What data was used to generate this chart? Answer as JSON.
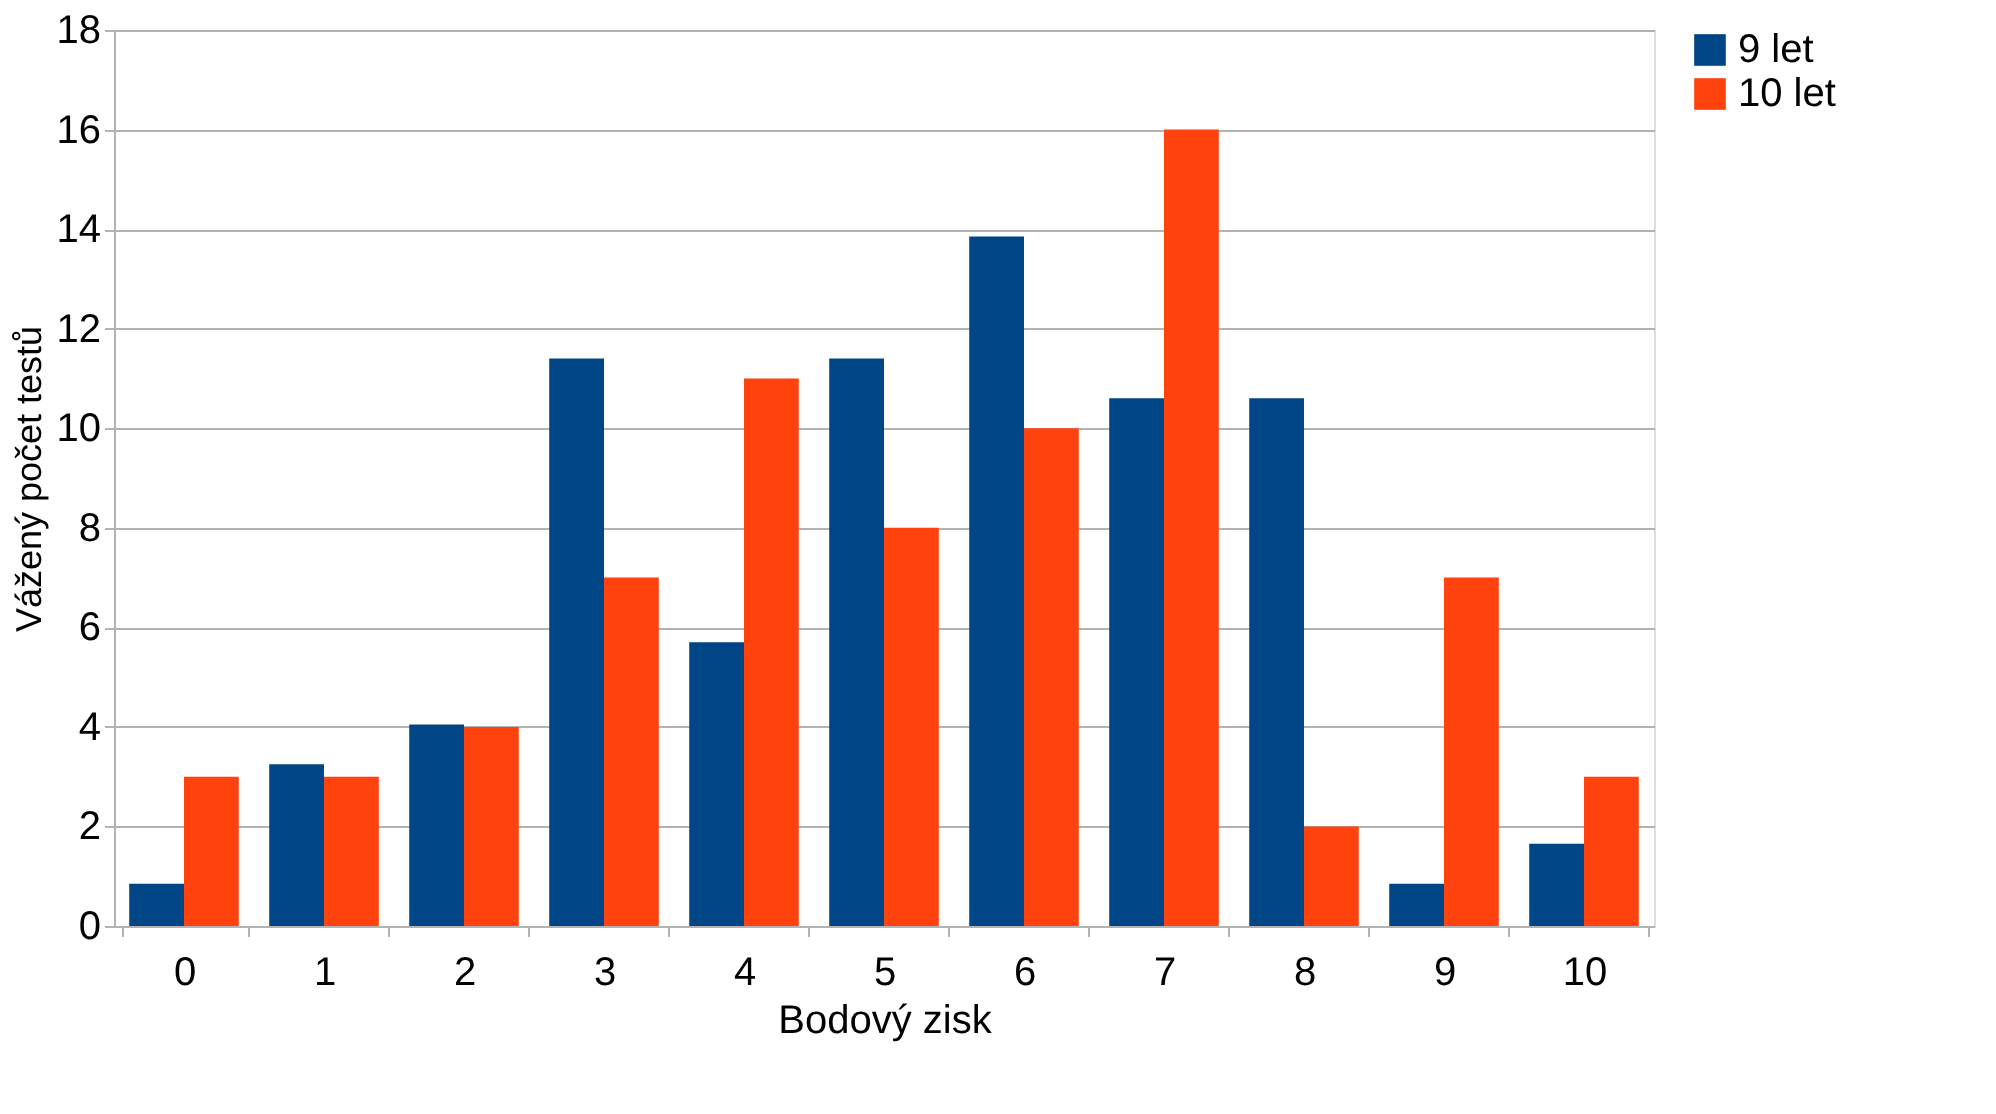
{
  "chart_data": {
    "type": "bar",
    "xlabel": "Bodový zisk",
    "ylabel": "Vážený počet testů",
    "categories": [
      "0",
      "1",
      "2",
      "3",
      "4",
      "5",
      "6",
      "7",
      "8",
      "9",
      "10"
    ],
    "series": [
      {
        "name": "9 let",
        "color": "#004586",
        "values": [
          0.85,
          3.25,
          4.05,
          11.4,
          5.7,
          11.4,
          13.85,
          10.6,
          10.6,
          0.85,
          1.65
        ]
      },
      {
        "name": "10 let",
        "color": "#ff420e",
        "values": [
          3,
          3,
          4,
          7,
          11,
          8,
          10,
          16,
          2,
          7,
          3
        ]
      }
    ],
    "ylim": [
      0,
      18
    ],
    "yticks": [
      0,
      2,
      4,
      6,
      8,
      10,
      12,
      14,
      16,
      18
    ],
    "grid": "y",
    "legend": "right"
  }
}
